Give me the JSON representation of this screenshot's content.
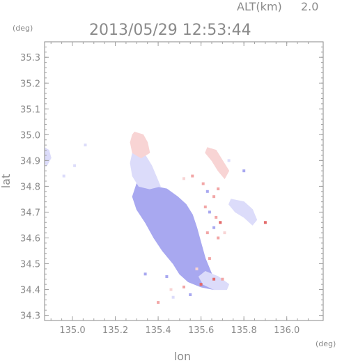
{
  "header": {
    "altitude_label": "ALT(km)",
    "altitude_value": "2.0",
    "timestamp": "2013/05/29 12:53:44",
    "y_unit": "(deg)",
    "x_unit": "(deg)"
  },
  "axes": {
    "xlabel": "lon",
    "ylabel": "lat",
    "xlim": [
      134.87,
      136.17
    ],
    "ylim": [
      34.28,
      35.36
    ],
    "x_ticks": [
      135.0,
      135.2,
      135.4,
      135.6,
      135.8,
      136.0
    ],
    "y_ticks": [
      34.3,
      34.4,
      34.5,
      34.6,
      34.7,
      34.8,
      34.9,
      35.0,
      35.1,
      35.2,
      35.3
    ],
    "x_tick_labels": [
      "135.0",
      "135.2",
      "135.4",
      "135.6",
      "135.8",
      "136.0"
    ],
    "y_tick_labels": [
      "34.3",
      "34.4",
      "34.5",
      "34.6",
      "34.7",
      "34.8",
      "34.9",
      "35.0",
      "35.1",
      "35.2",
      "35.3"
    ]
  },
  "colors": {
    "axis": "#8a8a8a",
    "tick": "#a0a0a0",
    "blue_dark": "#a8a8f0",
    "blue_light": "#dcdcfa",
    "red": "#f2a6a6",
    "red_light": "#f8d4d4",
    "red_dark": "#e36a6a"
  },
  "map_features": [
    {
      "name": "central-blue-body",
      "color": "blue_dark",
      "polygon": [
        [
          135.32,
          34.83
        ],
        [
          135.38,
          34.8
        ],
        [
          135.44,
          34.79
        ],
        [
          135.49,
          34.76
        ],
        [
          135.53,
          34.73
        ],
        [
          135.56,
          34.69
        ],
        [
          135.58,
          34.64
        ],
        [
          135.6,
          34.58
        ],
        [
          135.62,
          34.52
        ],
        [
          135.65,
          34.46
        ],
        [
          135.7,
          34.43
        ],
        [
          135.72,
          34.41
        ],
        [
          135.66,
          34.4
        ],
        [
          135.6,
          34.41
        ],
        [
          135.54,
          34.43
        ],
        [
          135.5,
          34.46
        ],
        [
          135.47,
          34.5
        ],
        [
          135.42,
          34.55
        ],
        [
          135.38,
          34.6
        ],
        [
          135.34,
          34.66
        ],
        [
          135.3,
          34.71
        ],
        [
          135.28,
          34.76
        ],
        [
          135.3,
          34.81
        ]
      ]
    },
    {
      "name": "upper-blue-light",
      "color": "blue_light",
      "polygon": [
        [
          135.28,
          34.93
        ],
        [
          135.34,
          34.92
        ],
        [
          135.37,
          34.88
        ],
        [
          135.39,
          34.84
        ],
        [
          135.41,
          34.8
        ],
        [
          135.36,
          34.79
        ],
        [
          135.31,
          34.8
        ],
        [
          135.28,
          34.84
        ],
        [
          135.27,
          34.89
        ]
      ]
    },
    {
      "name": "north-red-tip",
      "color": "red_light",
      "polygon": [
        [
          135.29,
          35.01
        ],
        [
          135.33,
          35.0
        ],
        [
          135.35,
          34.97
        ],
        [
          135.36,
          34.93
        ],
        [
          135.32,
          34.91
        ],
        [
          135.28,
          34.93
        ],
        [
          135.27,
          34.97
        ],
        [
          135.28,
          35.0
        ]
      ]
    },
    {
      "name": "east-lower-blue",
      "color": "blue_light",
      "polygon": [
        [
          135.62,
          34.47
        ],
        [
          135.68,
          34.45
        ],
        [
          135.73,
          34.42
        ],
        [
          135.72,
          34.4
        ],
        [
          135.66,
          34.4
        ],
        [
          135.61,
          34.42
        ],
        [
          135.59,
          34.45
        ]
      ]
    },
    {
      "name": "right-blue-cluster",
      "color": "blue_light",
      "polygon": [
        [
          135.74,
          34.75
        ],
        [
          135.8,
          34.74
        ],
        [
          135.84,
          34.71
        ],
        [
          135.86,
          34.67
        ],
        [
          135.84,
          34.65
        ],
        [
          135.8,
          34.68
        ],
        [
          135.76,
          34.7
        ],
        [
          135.73,
          34.73
        ]
      ]
    },
    {
      "name": "upper-right-strip",
      "color": "red_light",
      "polygon": [
        [
          135.63,
          34.95
        ],
        [
          135.67,
          34.94
        ],
        [
          135.7,
          34.9
        ],
        [
          135.73,
          34.86
        ],
        [
          135.71,
          34.83
        ],
        [
          135.68,
          34.86
        ],
        [
          135.65,
          34.9
        ],
        [
          135.62,
          34.93
        ]
      ]
    },
    {
      "name": "left-edge-blob",
      "color": "blue_light",
      "polygon": [
        [
          134.87,
          34.95
        ],
        [
          134.89,
          34.94
        ],
        [
          134.9,
          34.91
        ],
        [
          134.88,
          34.88
        ],
        [
          134.87,
          34.89
        ]
      ]
    }
  ],
  "scatter_points": [
    {
      "lon": 135.61,
      "lat": 34.81,
      "color": "red"
    },
    {
      "lon": 135.63,
      "lat": 34.78,
      "color": "blue_dark"
    },
    {
      "lon": 135.66,
      "lat": 34.76,
      "color": "red"
    },
    {
      "lon": 135.62,
      "lat": 34.72,
      "color": "red"
    },
    {
      "lon": 135.64,
      "lat": 34.7,
      "color": "blue_dark"
    },
    {
      "lon": 135.67,
      "lat": 34.68,
      "color": "red"
    },
    {
      "lon": 135.69,
      "lat": 34.66,
      "color": "red_dark"
    },
    {
      "lon": 135.66,
      "lat": 34.64,
      "color": "blue_dark"
    },
    {
      "lon": 135.63,
      "lat": 34.62,
      "color": "red"
    },
    {
      "lon": 135.68,
      "lat": 34.6,
      "color": "red"
    },
    {
      "lon": 135.71,
      "lat": 34.62,
      "color": "red_light"
    },
    {
      "lon": 135.6,
      "lat": 34.55,
      "color": "blue_dark"
    },
    {
      "lon": 135.64,
      "lat": 34.52,
      "color": "red"
    },
    {
      "lon": 135.58,
      "lat": 34.48,
      "color": "red_light"
    },
    {
      "lon": 135.66,
      "lat": 34.44,
      "color": "red_dark"
    },
    {
      "lon": 135.7,
      "lat": 34.44,
      "color": "red"
    },
    {
      "lon": 135.6,
      "lat": 34.42,
      "color": "red_dark"
    },
    {
      "lon": 135.52,
      "lat": 34.41,
      "color": "red"
    },
    {
      "lon": 135.46,
      "lat": 34.4,
      "color": "red_light"
    },
    {
      "lon": 135.4,
      "lat": 34.35,
      "color": "red"
    },
    {
      "lon": 135.47,
      "lat": 34.37,
      "color": "blue_light"
    },
    {
      "lon": 135.55,
      "lat": 34.38,
      "color": "blue_dark"
    },
    {
      "lon": 135.9,
      "lat": 34.66,
      "color": "red_dark"
    },
    {
      "lon": 135.8,
      "lat": 34.86,
      "color": "blue_dark"
    },
    {
      "lon": 135.56,
      "lat": 34.84,
      "color": "red"
    },
    {
      "lon": 135.52,
      "lat": 34.83,
      "color": "red_light"
    },
    {
      "lon": 135.68,
      "lat": 34.79,
      "color": "red"
    },
    {
      "lon": 135.06,
      "lat": 34.96,
      "color": "blue_light"
    },
    {
      "lon": 135.01,
      "lat": 34.88,
      "color": "blue_light"
    },
    {
      "lon": 134.96,
      "lat": 34.84,
      "color": "blue_light"
    },
    {
      "lon": 135.73,
      "lat": 34.9,
      "color": "blue_light"
    },
    {
      "lon": 135.44,
      "lat": 34.45,
      "color": "blue_dark"
    },
    {
      "lon": 135.34,
      "lat": 34.46,
      "color": "blue_dark"
    }
  ]
}
